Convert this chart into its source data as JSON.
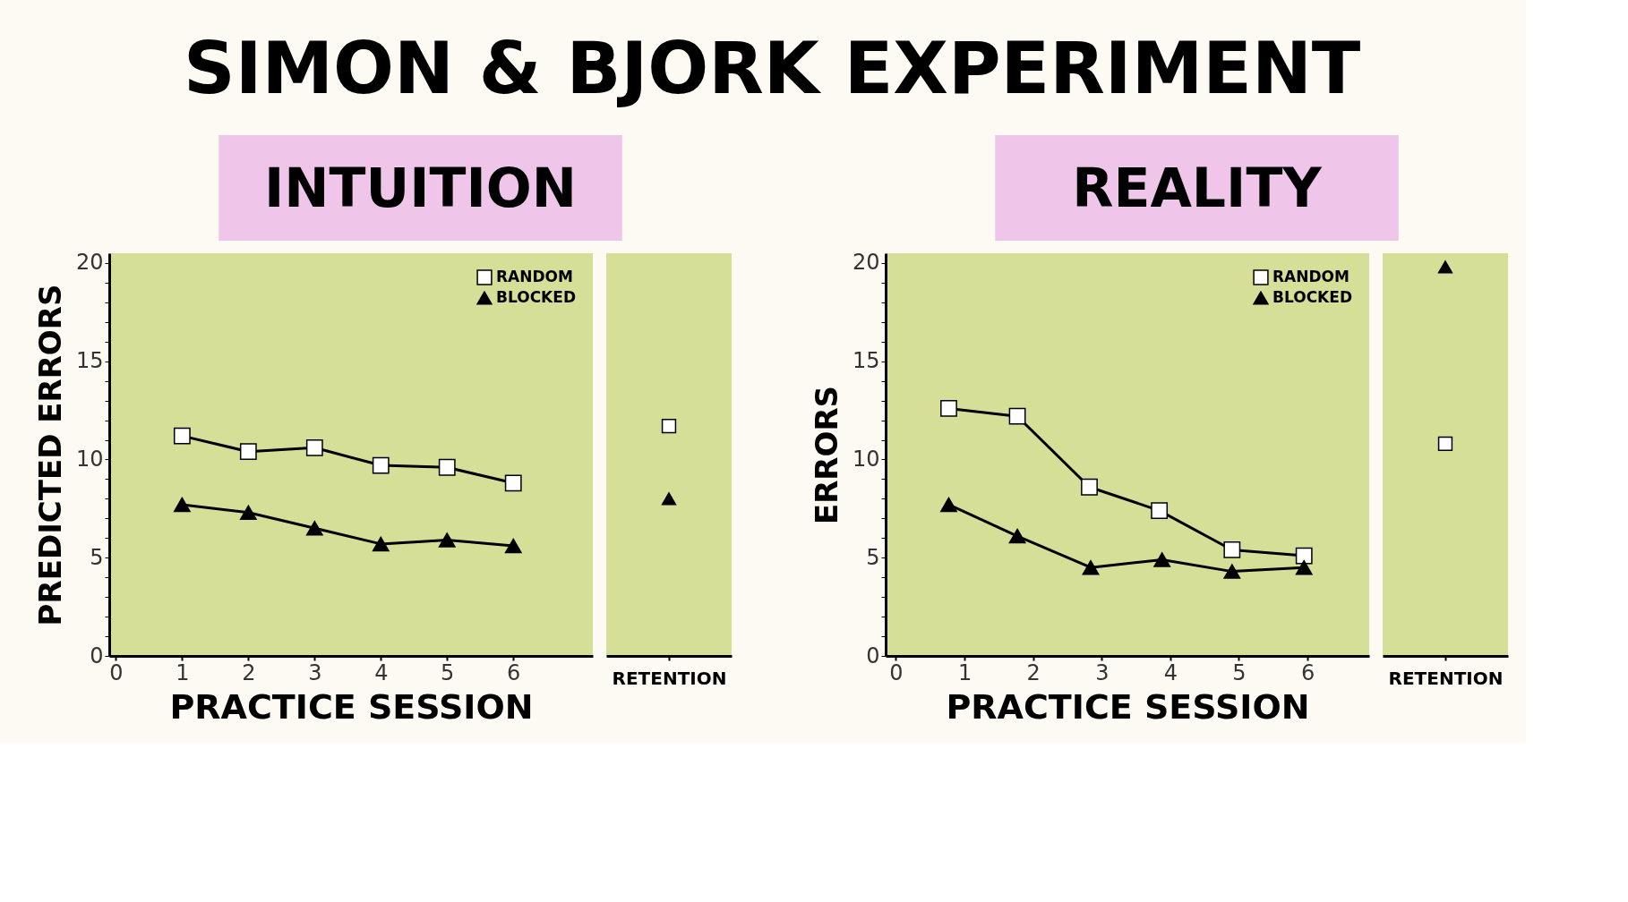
{
  "chart_data": [
    {
      "type": "line",
      "title": "SIMON & BJORK EXPERIMENT",
      "subtitle": "INTUITION",
      "xlabel": "PRACTICE SESSION",
      "ylabel": "PREDICTED ERRORS",
      "xlim": [
        -0.1,
        7.2
      ],
      "xticks": [
        0,
        1,
        2,
        3,
        4,
        5,
        6
      ],
      "ylim": [
        0,
        20.5
      ],
      "yticks": [
        0,
        {
          "value": 1,
          "label": null
        },
        {
          "value": 2,
          "label": null
        },
        {
          "value": 3,
          "label": null
        },
        {
          "value": 4,
          "label": null
        },
        5,
        {
          "value": 6,
          "label": null
        },
        {
          "value": 7,
          "label": null
        },
        {
          "value": 8,
          "label": null
        },
        {
          "value": 9,
          "label": null
        },
        10,
        {
          "value": 11,
          "label": null
        },
        {
          "value": 12,
          "label": null
        },
        {
          "value": 13,
          "label": null
        },
        {
          "value": 14,
          "label": null
        },
        15,
        {
          "value": 16,
          "label": null
        },
        {
          "value": 17,
          "label": null
        },
        {
          "value": 18,
          "label": null
        },
        {
          "value": 19,
          "label": null
        },
        20
      ],
      "grid": false,
      "legend": "top right",
      "x": [
        1,
        2,
        3,
        4,
        5,
        6
      ],
      "series": [
        {
          "name": "RANDOM",
          "color": "#000000",
          "marker": "square",
          "values": [
            11.2,
            10.4,
            10.6,
            9.7,
            9.6,
            8.8
          ]
        },
        {
          "name": "BLOCKED",
          "color": "#000000",
          "marker": "triangle",
          "values": [
            7.7,
            7.3,
            6.5,
            5.7,
            5.9,
            5.6
          ]
        }
      ]
    },
    {
      "type": "scatter",
      "categories": [
        "RETENTION"
      ],
      "ylim": [
        0,
        20.5
      ],
      "tick_labels": "x",
      "grid": false,
      "legend": false,
      "series": [
        {
          "color": "#000000",
          "marker": "square",
          "values": [
            11.7
          ]
        },
        {
          "color": "#000000",
          "marker": "triangle",
          "values": [
            8.0
          ]
        }
      ]
    },
    {
      "type": "line",
      "subtitle": "REALITY",
      "xlabel": "PRACTICE SESSION",
      "ylabel": "ERRORS",
      "xlim": [
        -0.15,
        6.9
      ],
      "xticks": [
        0,
        1,
        2,
        3,
        4,
        5,
        6
      ],
      "ylim": [
        0,
        20.5
      ],
      "yticks": [
        0,
        {
          "value": 1,
          "label": null
        },
        {
          "value": 2,
          "label": null
        },
        {
          "value": 3,
          "label": null
        },
        {
          "value": 4,
          "label": null
        },
        5,
        {
          "value": 6,
          "label": null
        },
        {
          "value": 7,
          "label": null
        },
        {
          "value": 8,
          "label": null
        },
        {
          "value": 9,
          "label": null
        },
        10,
        {
          "value": 11,
          "label": null
        },
        {
          "value": 12,
          "label": null
        },
        {
          "value": 13,
          "label": null
        },
        {
          "value": 14,
          "label": null
        },
        15,
        {
          "value": 16,
          "label": null
        },
        {
          "value": 17,
          "label": null
        },
        {
          "value": 18,
          "label": null
        },
        {
          "value": 19,
          "label": null
        },
        20
      ],
      "grid": false,
      "legend": "top right",
      "series": [
        {
          "name": "RANDOM",
          "color": "#000000",
          "marker": "square",
          "x": [
            0.77,
            1.77,
            2.82,
            3.84,
            4.9,
            5.95
          ],
          "values": [
            12.6,
            12.2,
            8.6,
            7.4,
            5.4,
            5.1
          ]
        },
        {
          "name": "BLOCKED",
          "color": "#000000",
          "marker": "triangle",
          "x": [
            0.77,
            1.77,
            2.84,
            3.88,
            4.9,
            5.95
          ],
          "values": [
            7.7,
            6.1,
            4.5,
            4.9,
            4.3,
            4.5
          ]
        }
      ]
    },
    {
      "type": "scatter",
      "categories": [
        "RETENTION"
      ],
      "ylim": [
        0,
        20.5
      ],
      "tick_labels": "x",
      "grid": false,
      "legend": false,
      "series": [
        {
          "color": "#000000",
          "marker": "square",
          "values": [
            10.8
          ]
        },
        {
          "color": "#000000",
          "marker": "triangle",
          "values": [
            19.8
          ]
        }
      ]
    }
  ]
}
